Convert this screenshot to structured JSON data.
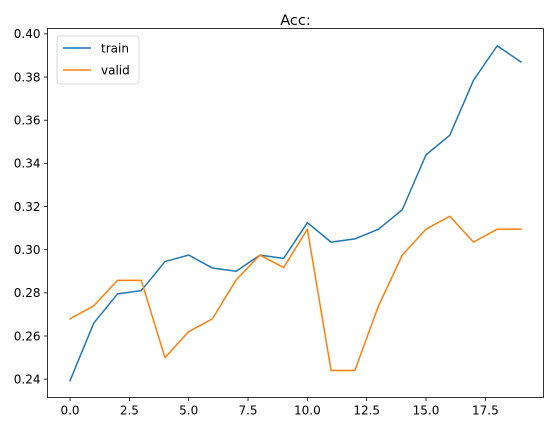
{
  "chart_data": {
    "type": "line",
    "title": "Acc:",
    "xlabel": "",
    "ylabel": "",
    "x": [
      0,
      1,
      2,
      3,
      4,
      5,
      6,
      7,
      8,
      9,
      10,
      11,
      12,
      13,
      14,
      15,
      16,
      17,
      18,
      19
    ],
    "series": [
      {
        "name": "train",
        "color": "#1f77b4",
        "values": [
          0.2393,
          0.266,
          0.2795,
          0.281,
          0.2945,
          0.2975,
          0.2915,
          0.29,
          0.2975,
          0.296,
          0.3125,
          0.3035,
          0.305,
          0.3095,
          0.3185,
          0.344,
          0.353,
          0.3785,
          0.3945,
          0.387
        ]
      },
      {
        "name": "valid",
        "color": "#ff7f0e",
        "values": [
          0.268,
          0.274,
          0.2858,
          0.2858,
          0.25,
          0.262,
          0.268,
          0.286,
          0.2975,
          0.2917,
          0.3095,
          0.244,
          0.244,
          0.274,
          0.2975,
          0.3095,
          0.3155,
          0.3035,
          0.3095,
          0.3095
        ]
      }
    ],
    "xlim": [
      -0.95,
      19.95
    ],
    "ylim": [
      0.2315,
      0.4025
    ],
    "xticks": [
      0.0,
      2.5,
      5.0,
      7.5,
      10.0,
      12.5,
      15.0,
      17.5
    ],
    "xtick_labels": [
      "0.0",
      "2.5",
      "5.0",
      "7.5",
      "10.0",
      "12.5",
      "15.0",
      "17.5"
    ],
    "yticks": [
      0.24,
      0.26,
      0.28,
      0.3,
      0.32,
      0.34,
      0.36,
      0.38,
      0.4
    ],
    "ytick_labels": [
      "0.24",
      "0.26",
      "0.28",
      "0.30",
      "0.32",
      "0.34",
      "0.36",
      "0.38",
      "0.40"
    ],
    "grid": false,
    "legend_position": "upper-left"
  }
}
